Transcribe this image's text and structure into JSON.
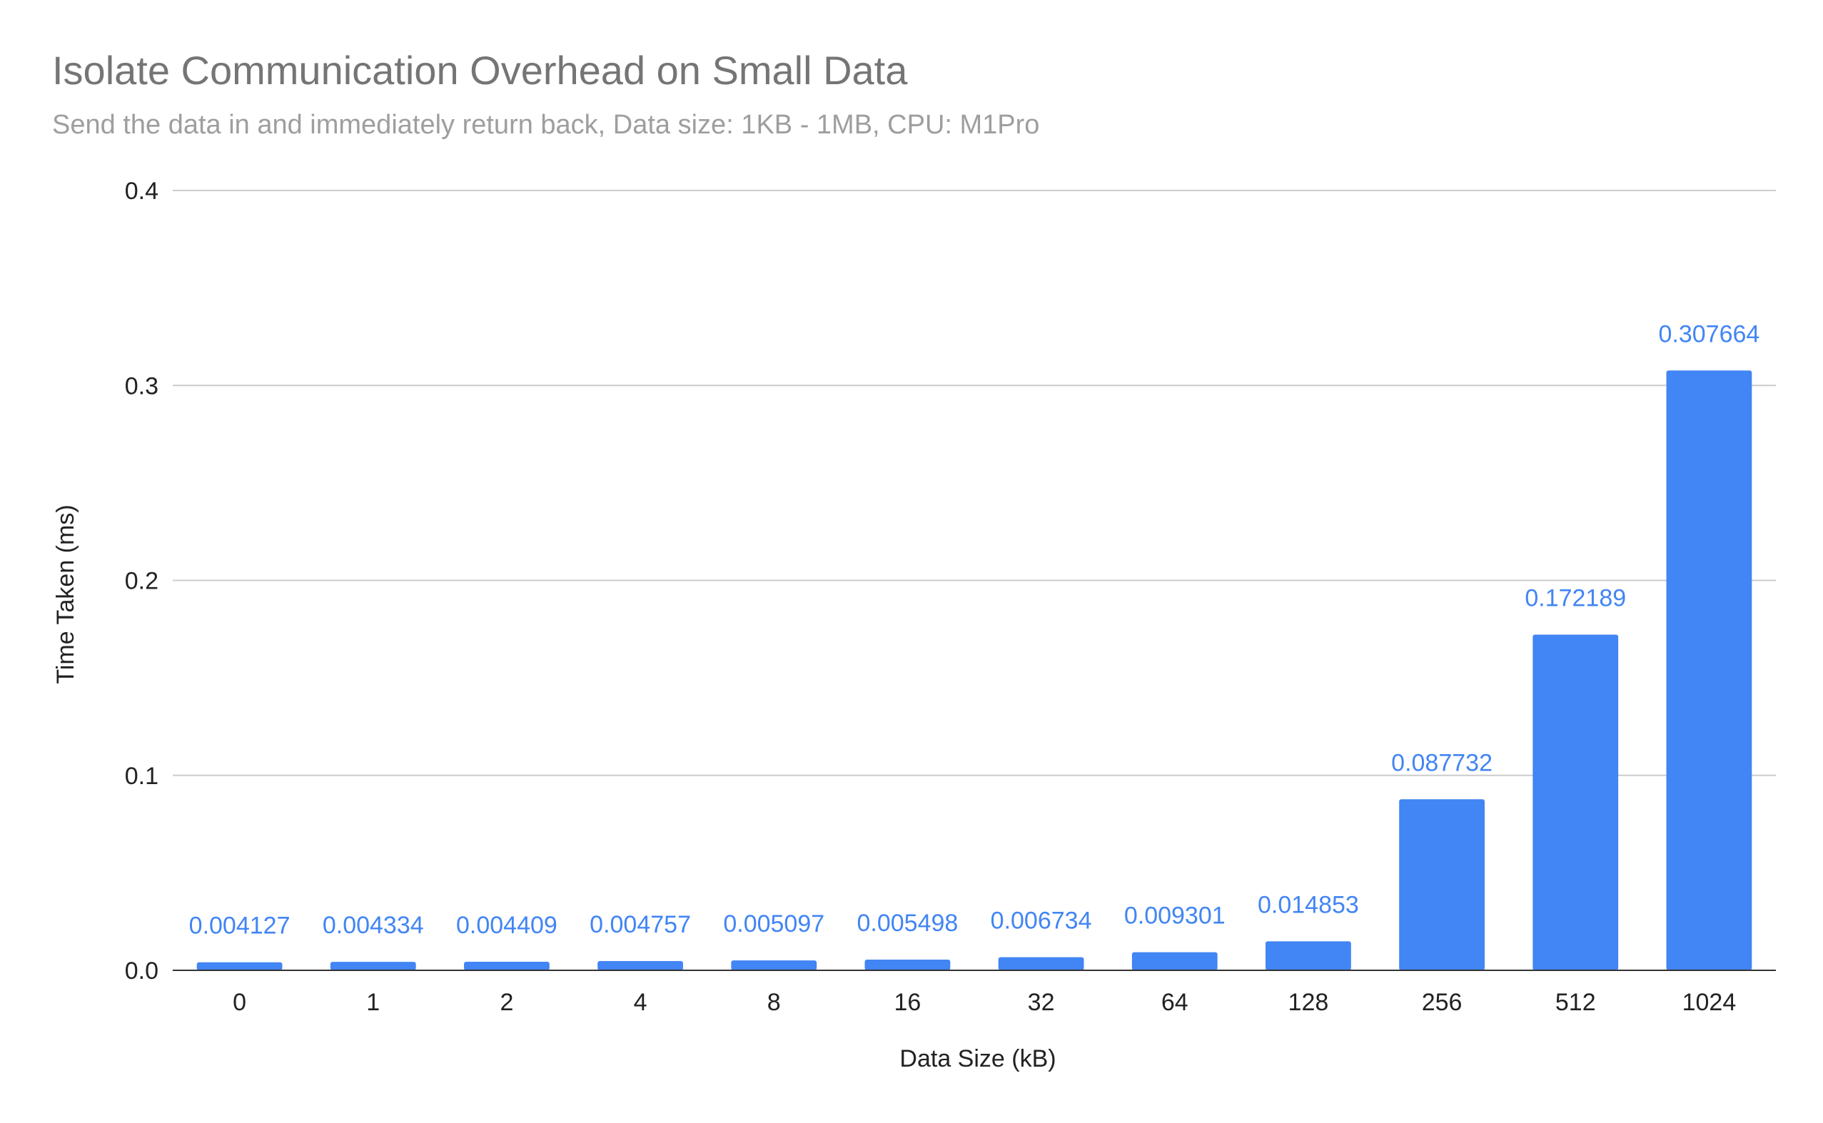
{
  "chart_data": {
    "type": "bar",
    "title": "Isolate Communication Overhead on Small Data",
    "subtitle": "Send the data in and immediately return back, Data size: 1KB - 1MB, CPU: M1Pro",
    "xlabel": "Data Size (kB)",
    "ylabel": "Time Taken (ms)",
    "categories": [
      "0",
      "1",
      "2",
      "4",
      "8",
      "16",
      "32",
      "64",
      "128",
      "256",
      "512",
      "1024"
    ],
    "values": [
      0.004127,
      0.004334,
      0.004409,
      0.004757,
      0.005097,
      0.005498,
      0.006734,
      0.009301,
      0.014853,
      0.087732,
      0.172189,
      0.307664
    ],
    "data_labels": [
      "0.004127",
      "0.004334",
      "0.004409",
      "0.004757",
      "0.005097",
      "0.005498",
      "0.006734",
      "0.009301",
      "0.014853",
      "0.087732",
      "0.172189",
      "0.307664"
    ],
    "ylim": [
      0,
      0.4
    ],
    "yticks": [
      0,
      0.1,
      0.2,
      0.3,
      0.4
    ],
    "ytick_labels": [
      "0.0",
      "0.1",
      "0.2",
      "0.3",
      "0.4"
    ],
    "grid": true,
    "legend": "none",
    "colors": {
      "bar": "#4285f4",
      "data_label": "#4285f4"
    }
  }
}
